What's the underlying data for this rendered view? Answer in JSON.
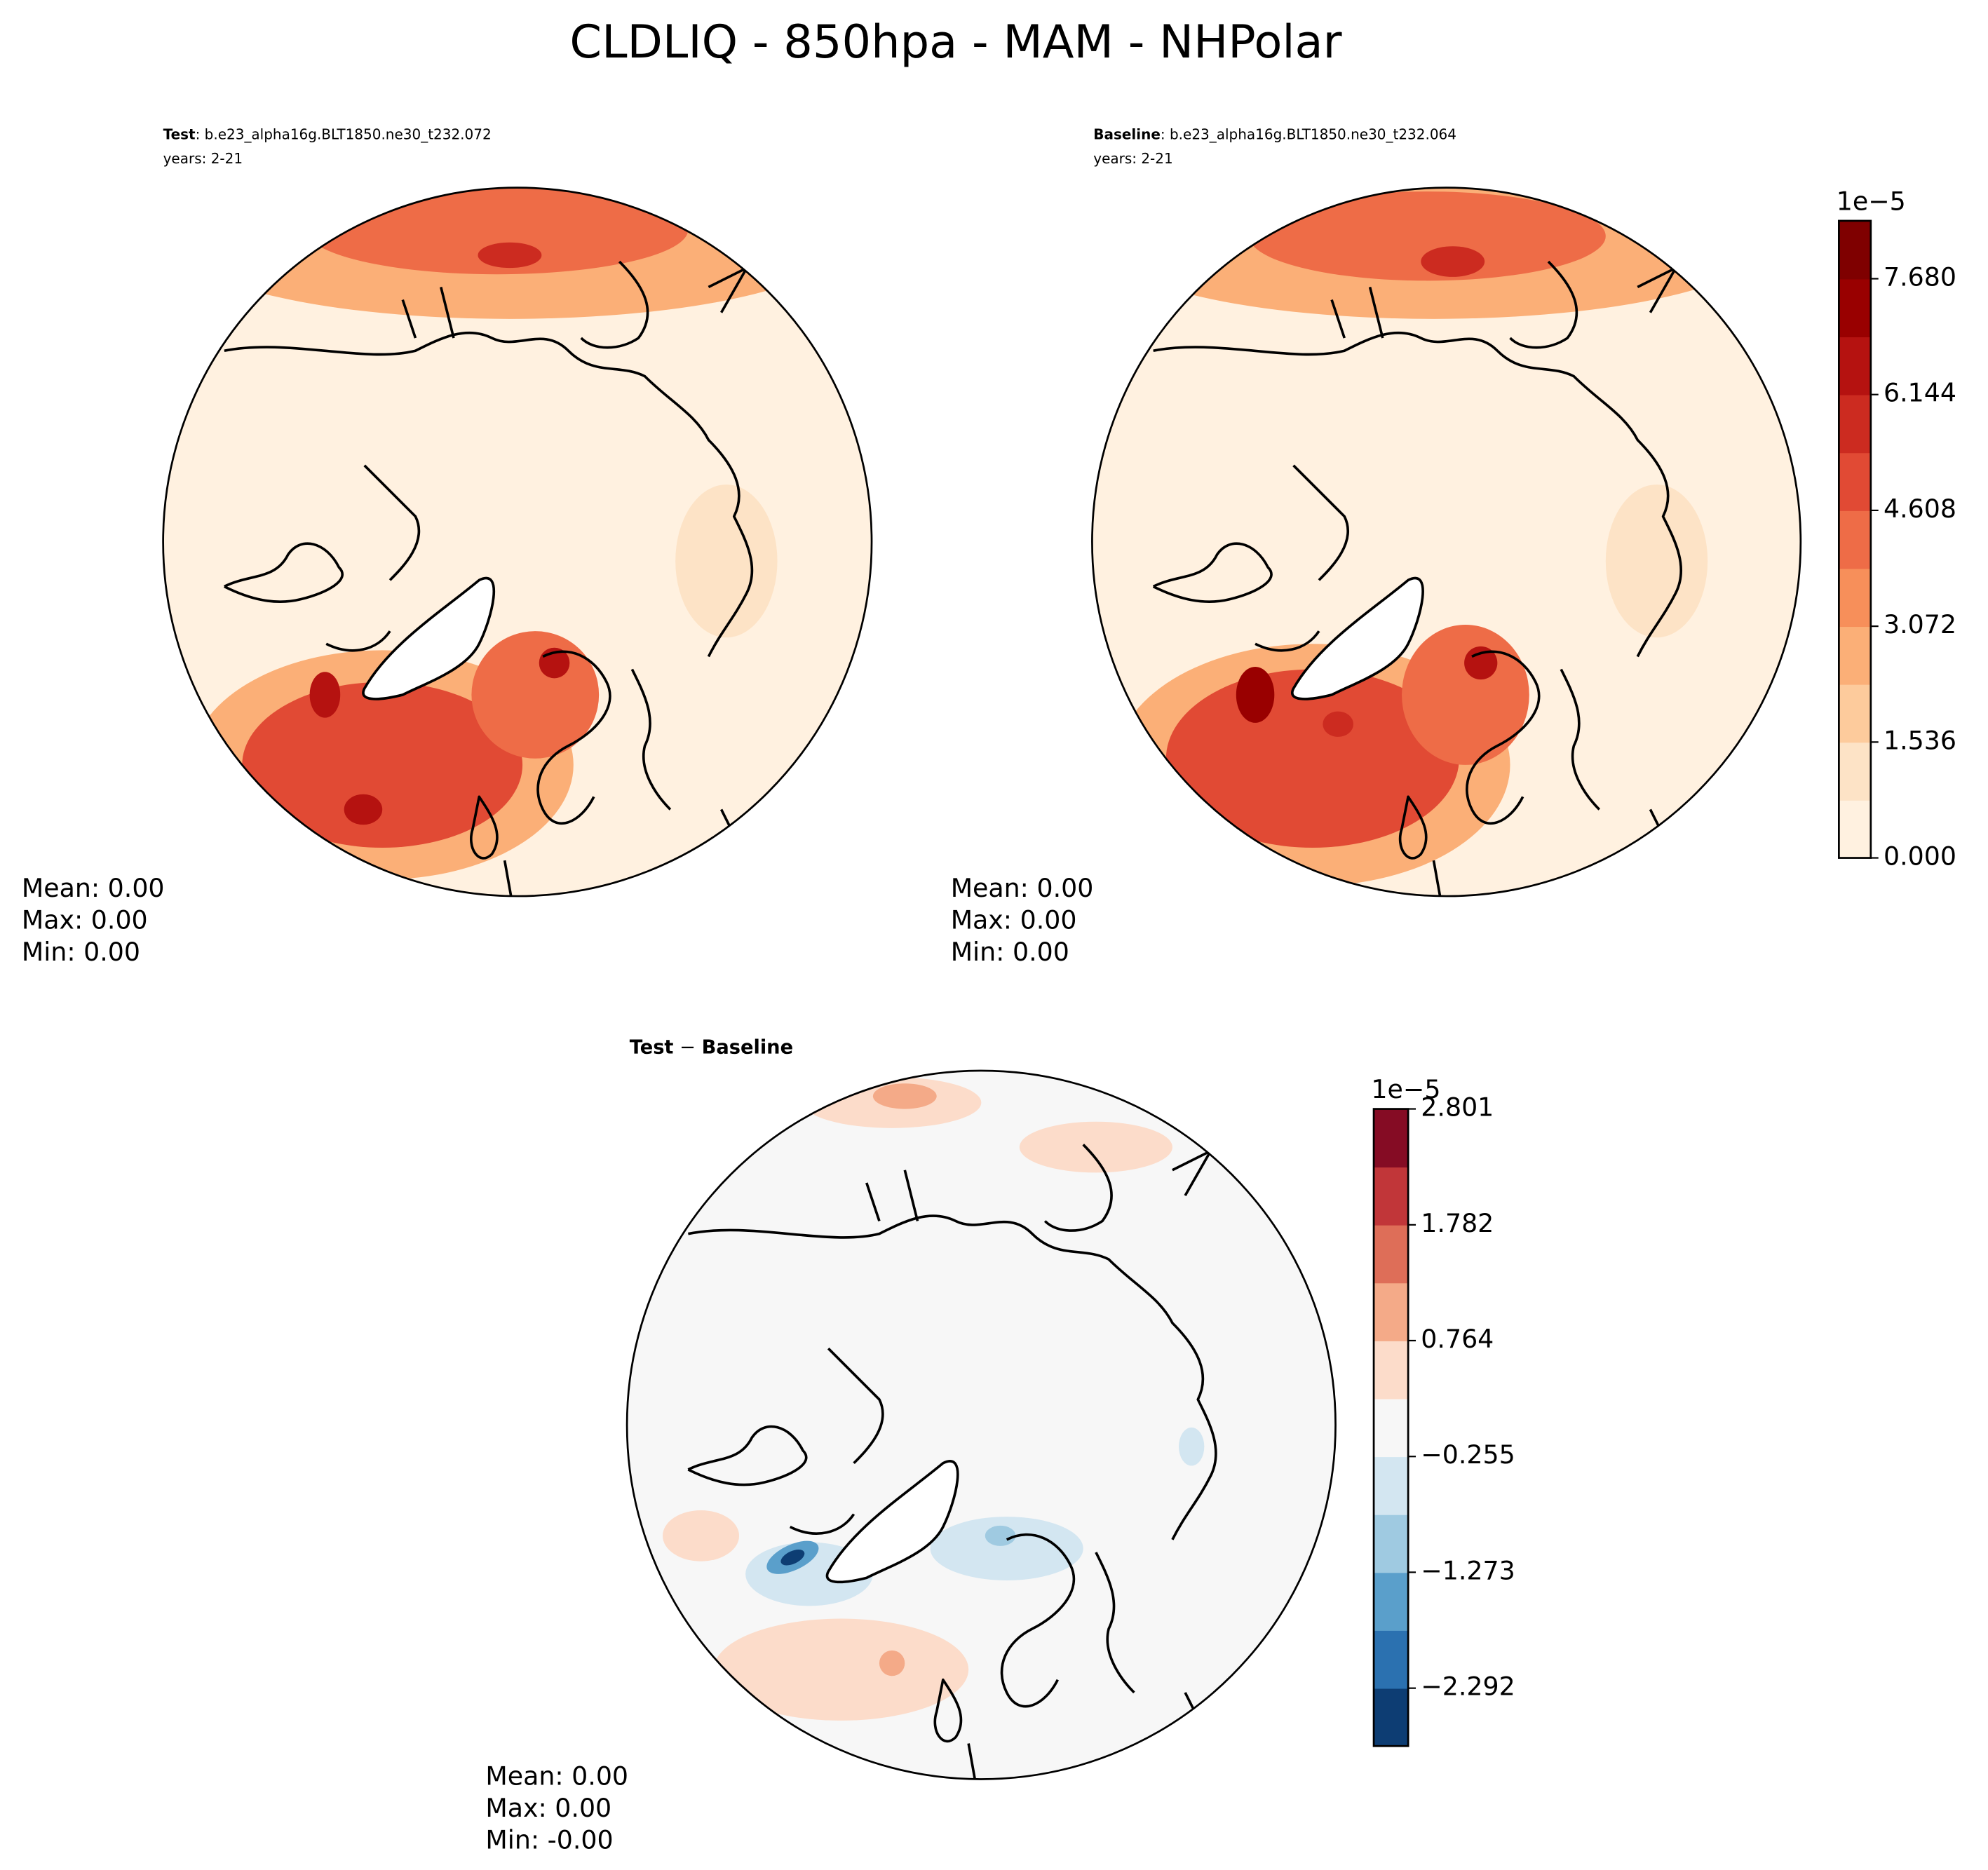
{
  "title": "CLDLIQ - 850hpa - MAM - NHPolar",
  "panels": [
    {
      "label": "Test",
      "case": ": b.e23_alpha16g.BLT1850.ne30_t232.072",
      "years": "years: 2-21",
      "stats": [
        "Mean:  0.00",
        "Max:  0.00",
        "Min:  0.00"
      ]
    },
    {
      "label": "Baseline",
      "case": ": b.e23_alpha16g.BLT1850.ne30_t232.064",
      "years": "years: 2-21",
      "stats": [
        "Mean:  0.00",
        "Max:  0.00",
        "Min:  0.00"
      ]
    },
    {
      "label": "Test",
      "separator": " − ",
      "label2": "Baseline",
      "stats": [
        "Mean:  0.00",
        "Max:  0.00",
        "Min: -0.00"
      ]
    }
  ],
  "colorbars": [
    {
      "multiplier": "1e−5",
      "lim": [
        0,
        8.448
      ],
      "ticks": [
        {
          "value": 0,
          "label": "0.000"
        },
        1.536,
        3.072,
        4.608,
        6.144,
        {
          "value": 7.68,
          "label": "7.680"
        }
      ],
      "colors": [
        "#fff1e0",
        "#fde3c6",
        "#fdcb9c",
        "#fbaf77",
        "#f78f5a",
        "#ee6c47",
        "#e14a34",
        "#cc2b20",
        "#b51210",
        "#990000",
        "#7f0000"
      ]
    },
    {
      "multiplier": "1e−5",
      "lim": [
        -2.801,
        2.801
      ],
      "ticks": [
        {
          "value": -2.292,
          "label": "−2.292"
        },
        {
          "value": -1.273,
          "label": "−1.273"
        },
        {
          "value": -0.255,
          "label": "−0.255"
        },
        0.764,
        1.782,
        2.801
      ],
      "colors": [
        "#0d3d73",
        "#2b71b0",
        "#5a9fcb",
        "#9fcae1",
        "#d3e6f1",
        "#f7f7f7",
        "#fcdcca",
        "#f4aa88",
        "#de6e58",
        "#c13639",
        "#850c24"
      ]
    }
  ]
}
